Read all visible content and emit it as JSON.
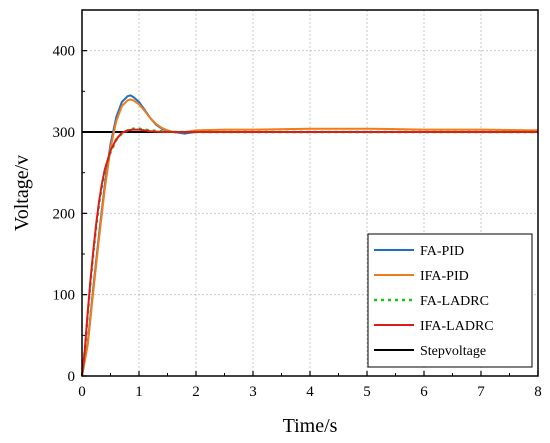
{
  "chart_data": {
    "type": "line",
    "xlabel": "Time/s",
    "ylabel": "Voltage/v",
    "xlim": [
      0,
      8
    ],
    "ylim": [
      0,
      450
    ],
    "x_ticks": [
      0,
      1,
      2,
      3,
      4,
      5,
      6,
      7,
      8
    ],
    "y_ticks": [
      0,
      100,
      200,
      300,
      400
    ],
    "grid": true,
    "legend_position": "bottom-right",
    "series": [
      {
        "name": "FA-PID",
        "color": "#1f6fc5",
        "style": "solid",
        "points": [
          [
            0,
            0
          ],
          [
            0.1,
            40
          ],
          [
            0.2,
            110
          ],
          [
            0.3,
            175
          ],
          [
            0.4,
            235
          ],
          [
            0.5,
            285
          ],
          [
            0.6,
            318
          ],
          [
            0.7,
            337
          ],
          [
            0.8,
            344
          ],
          [
            0.85,
            345
          ],
          [
            0.9,
            343
          ],
          [
            1.0,
            337
          ],
          [
            1.1,
            327
          ],
          [
            1.2,
            317
          ],
          [
            1.3,
            309
          ],
          [
            1.4,
            304
          ],
          [
            1.5,
            301
          ],
          [
            1.6,
            300
          ],
          [
            1.7,
            299
          ],
          [
            1.8,
            298
          ],
          [
            1.9,
            299
          ],
          [
            2.0,
            300
          ],
          [
            2.5,
            300
          ],
          [
            3,
            300
          ],
          [
            4,
            300
          ],
          [
            5,
            300
          ],
          [
            6,
            300
          ],
          [
            7,
            300
          ],
          [
            8,
            300
          ]
        ]
      },
      {
        "name": "IFA-PID",
        "color": "#f07c1a",
        "style": "solid",
        "points": [
          [
            0,
            0
          ],
          [
            0.1,
            38
          ],
          [
            0.2,
            105
          ],
          [
            0.3,
            170
          ],
          [
            0.4,
            230
          ],
          [
            0.5,
            280
          ],
          [
            0.6,
            313
          ],
          [
            0.7,
            332
          ],
          [
            0.8,
            339
          ],
          [
            0.85,
            340
          ],
          [
            0.9,
            339
          ],
          [
            1.0,
            334
          ],
          [
            1.1,
            326
          ],
          [
            1.2,
            317
          ],
          [
            1.3,
            310
          ],
          [
            1.4,
            305
          ],
          [
            1.5,
            302
          ],
          [
            1.6,
            300
          ],
          [
            1.7,
            300
          ],
          [
            1.8,
            300
          ],
          [
            1.9,
            301
          ],
          [
            2.0,
            302
          ],
          [
            2.5,
            303
          ],
          [
            3,
            303
          ],
          [
            4,
            304
          ],
          [
            5,
            304
          ],
          [
            6,
            303
          ],
          [
            7,
            303
          ],
          [
            8,
            302
          ]
        ]
      },
      {
        "name": "FA-LADRC",
        "color": "#19c419",
        "style": "dotted",
        "points": [
          [
            0,
            0
          ],
          [
            0.05,
            30
          ],
          [
            0.1,
            75
          ],
          [
            0.15,
            115
          ],
          [
            0.2,
            152
          ],
          [
            0.25,
            185
          ],
          [
            0.3,
            212
          ],
          [
            0.35,
            234
          ],
          [
            0.4,
            252
          ],
          [
            0.5,
            275
          ],
          [
            0.6,
            290
          ],
          [
            0.7,
            298
          ],
          [
            0.8,
            302
          ],
          [
            0.9,
            304
          ],
          [
            1.0,
            304
          ],
          [
            1.1,
            303
          ],
          [
            1.2,
            302
          ],
          [
            1.4,
            301
          ],
          [
            1.6,
            300
          ],
          [
            2.0,
            300
          ],
          [
            3,
            300
          ],
          [
            4,
            300
          ],
          [
            5,
            300
          ],
          [
            6,
            300
          ],
          [
            7,
            300
          ],
          [
            8,
            300
          ]
        ]
      },
      {
        "name": "IFA-LADRC",
        "color": "#e01919",
        "style": "solid",
        "points": [
          [
            0,
            0
          ],
          [
            0.05,
            32
          ],
          [
            0.1,
            78
          ],
          [
            0.15,
            118
          ],
          [
            0.2,
            155
          ],
          [
            0.25,
            188
          ],
          [
            0.3,
            215
          ],
          [
            0.35,
            237
          ],
          [
            0.4,
            254
          ],
          [
            0.5,
            277
          ],
          [
            0.6,
            291
          ],
          [
            0.7,
            299
          ],
          [
            0.8,
            302
          ],
          [
            0.9,
            303
          ],
          [
            1.0,
            303
          ],
          [
            1.1,
            302
          ],
          [
            1.2,
            301
          ],
          [
            1.4,
            300
          ],
          [
            1.6,
            300
          ],
          [
            2.0,
            300
          ],
          [
            3,
            300
          ],
          [
            4,
            300
          ],
          [
            5,
            300
          ],
          [
            6,
            300
          ],
          [
            7,
            300
          ],
          [
            8,
            300
          ]
        ]
      },
      {
        "name": "Stepvoltage",
        "color": "#000000",
        "style": "solid",
        "points": [
          [
            0,
            300
          ],
          [
            8,
            300
          ]
        ]
      }
    ]
  }
}
